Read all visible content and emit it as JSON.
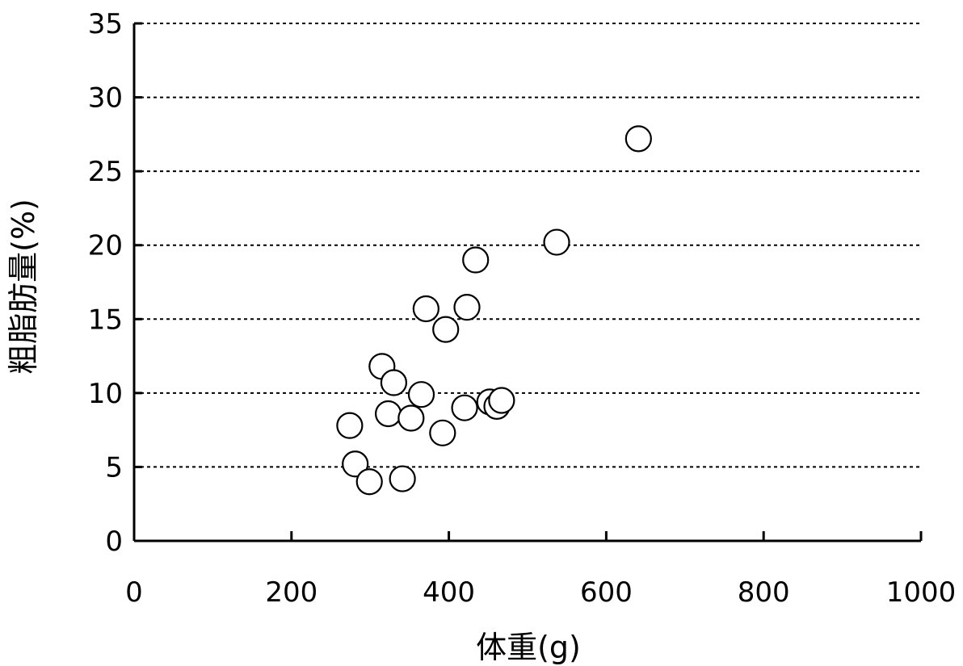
{
  "chart_data": {
    "type": "scatter",
    "xlabel": "体重(g)",
    "ylabel": "粗脂肪量(%)",
    "xlim": [
      0,
      1000
    ],
    "ylim": [
      0,
      35
    ],
    "x_ticks": [
      "0",
      "200",
      "400",
      "600",
      "800",
      "1000"
    ],
    "y_ticks": [
      "0",
      "5",
      "10",
      "15",
      "20",
      "25",
      "30",
      "35"
    ],
    "grid": "horizontal-dotted",
    "marker": "open-circle",
    "points": [
      {
        "x": 274,
        "y": 7.8
      },
      {
        "x": 281,
        "y": 5.2
      },
      {
        "x": 299,
        "y": 4.0
      },
      {
        "x": 315,
        "y": 11.8
      },
      {
        "x": 323,
        "y": 8.6
      },
      {
        "x": 330,
        "y": 10.7
      },
      {
        "x": 341,
        "y": 4.2
      },
      {
        "x": 352,
        "y": 8.3
      },
      {
        "x": 365,
        "y": 9.9
      },
      {
        "x": 371,
        "y": 15.7
      },
      {
        "x": 392,
        "y": 7.3
      },
      {
        "x": 396,
        "y": 14.3
      },
      {
        "x": 420,
        "y": 9.0
      },
      {
        "x": 423,
        "y": 15.8
      },
      {
        "x": 434,
        "y": 19.0
      },
      {
        "x": 452,
        "y": 9.4
      },
      {
        "x": 461,
        "y": 9.1
      },
      {
        "x": 467,
        "y": 9.5
      },
      {
        "x": 537,
        "y": 20.2
      },
      {
        "x": 641,
        "y": 27.2
      }
    ]
  }
}
